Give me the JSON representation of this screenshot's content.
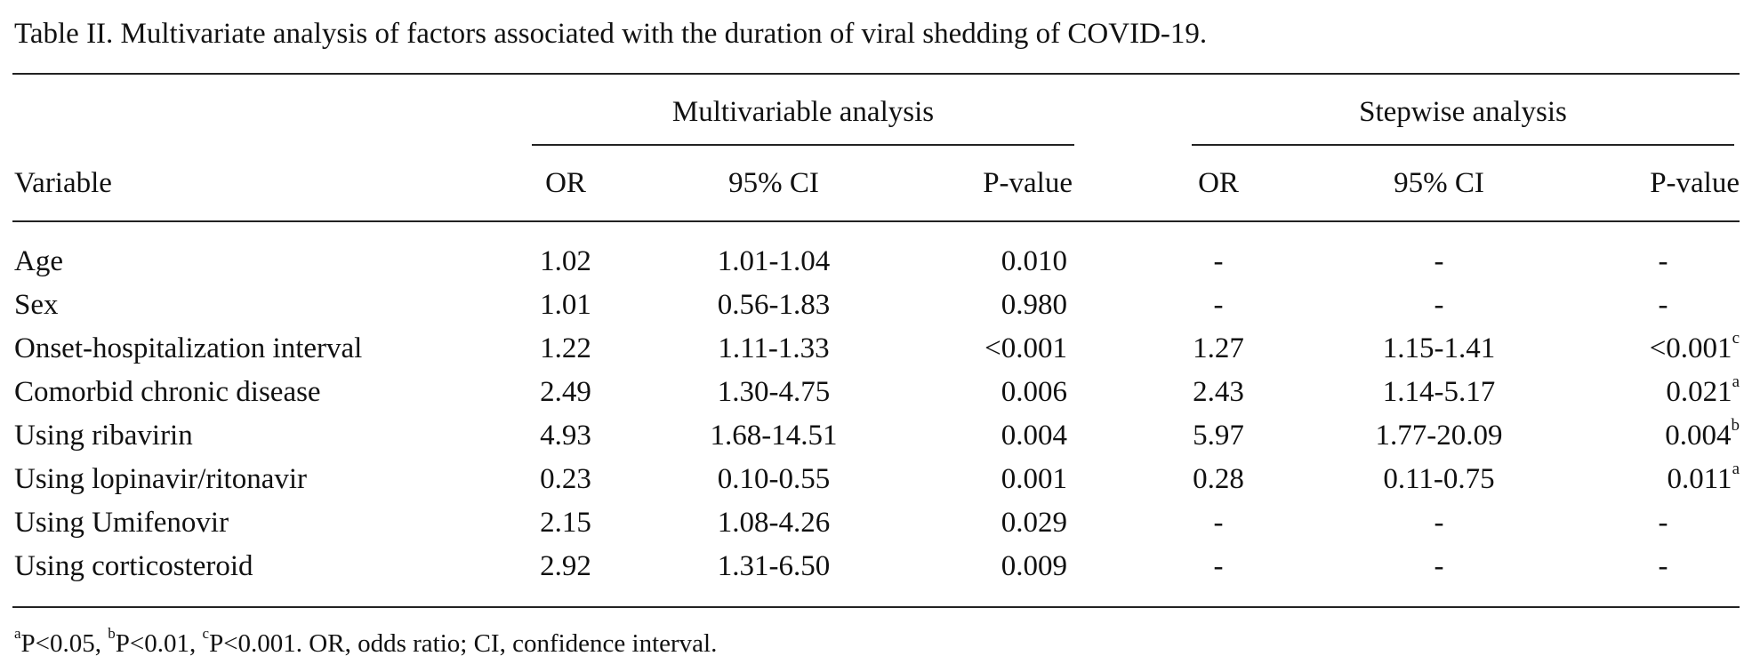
{
  "caption": "Table II. Multivariate analysis of factors associated with the duration of viral shedding of COVID-19.",
  "groups": {
    "multivariable": "Multivariable analysis",
    "stepwise": "Stepwise analysis"
  },
  "headers": {
    "variable": "Variable",
    "mv_or": "OR",
    "mv_ci": "95% CI",
    "mv_p": "P-value",
    "sw_or": "OR",
    "sw_ci": "95% CI",
    "sw_p": "P-value"
  },
  "rows": [
    {
      "variable": "Age",
      "mv_or": "1.02",
      "mv_ci": "1.01-1.04",
      "mv_p": "0.010",
      "sw_or": "-",
      "sw_ci": "-",
      "sw_p": "-",
      "sw_sup": ""
    },
    {
      "variable": "Sex",
      "mv_or": "1.01",
      "mv_ci": "0.56-1.83",
      "mv_p": "0.980",
      "sw_or": "-",
      "sw_ci": "-",
      "sw_p": "-",
      "sw_sup": ""
    },
    {
      "variable": "Onset-hospitalization interval",
      "mv_or": "1.22",
      "mv_ci": "1.11-1.33",
      "mv_p": "<0.001",
      "sw_or": "1.27",
      "sw_ci": "1.15-1.41",
      "sw_p": "<0.001",
      "sw_sup": "c"
    },
    {
      "variable": "Comorbid chronic disease",
      "mv_or": "2.49",
      "mv_ci": "1.30-4.75",
      "mv_p": "0.006",
      "sw_or": "2.43",
      "sw_ci": "1.14-5.17",
      "sw_p": "0.021",
      "sw_sup": "a"
    },
    {
      "variable": "Using ribavirin",
      "mv_or": "4.93",
      "mv_ci": "1.68-14.51",
      "mv_p": "0.004",
      "sw_or": "5.97",
      "sw_ci": "1.77-20.09",
      "sw_p": "0.004",
      "sw_sup": "b"
    },
    {
      "variable": "Using lopinavir/ritonavir",
      "mv_or": "0.23",
      "mv_ci": "0.10-0.55",
      "mv_p": "0.001",
      "sw_or": "0.28",
      "sw_ci": "0.11-0.75",
      "sw_p": "0.011",
      "sw_sup": "a"
    },
    {
      "variable": "Using Umifenovir",
      "mv_or": "2.15",
      "mv_ci": "1.08-4.26",
      "mv_p": "0.029",
      "sw_or": "-",
      "sw_ci": "-",
      "sw_p": "-",
      "sw_sup": ""
    },
    {
      "variable": "Using corticosteroid",
      "mv_or": "2.92",
      "mv_ci": "1.31-6.50",
      "mv_p": "0.009",
      "sw_or": "-",
      "sw_ci": "-",
      "sw_p": "-",
      "sw_sup": ""
    }
  ],
  "footnote": {
    "sup_a": "a",
    "text_a": "P<0.05, ",
    "sup_b": "b",
    "text_b": "P<0.01, ",
    "sup_c": "c",
    "text_c": "P<0.001. OR, odds ratio; CI, confidence interval."
  }
}
